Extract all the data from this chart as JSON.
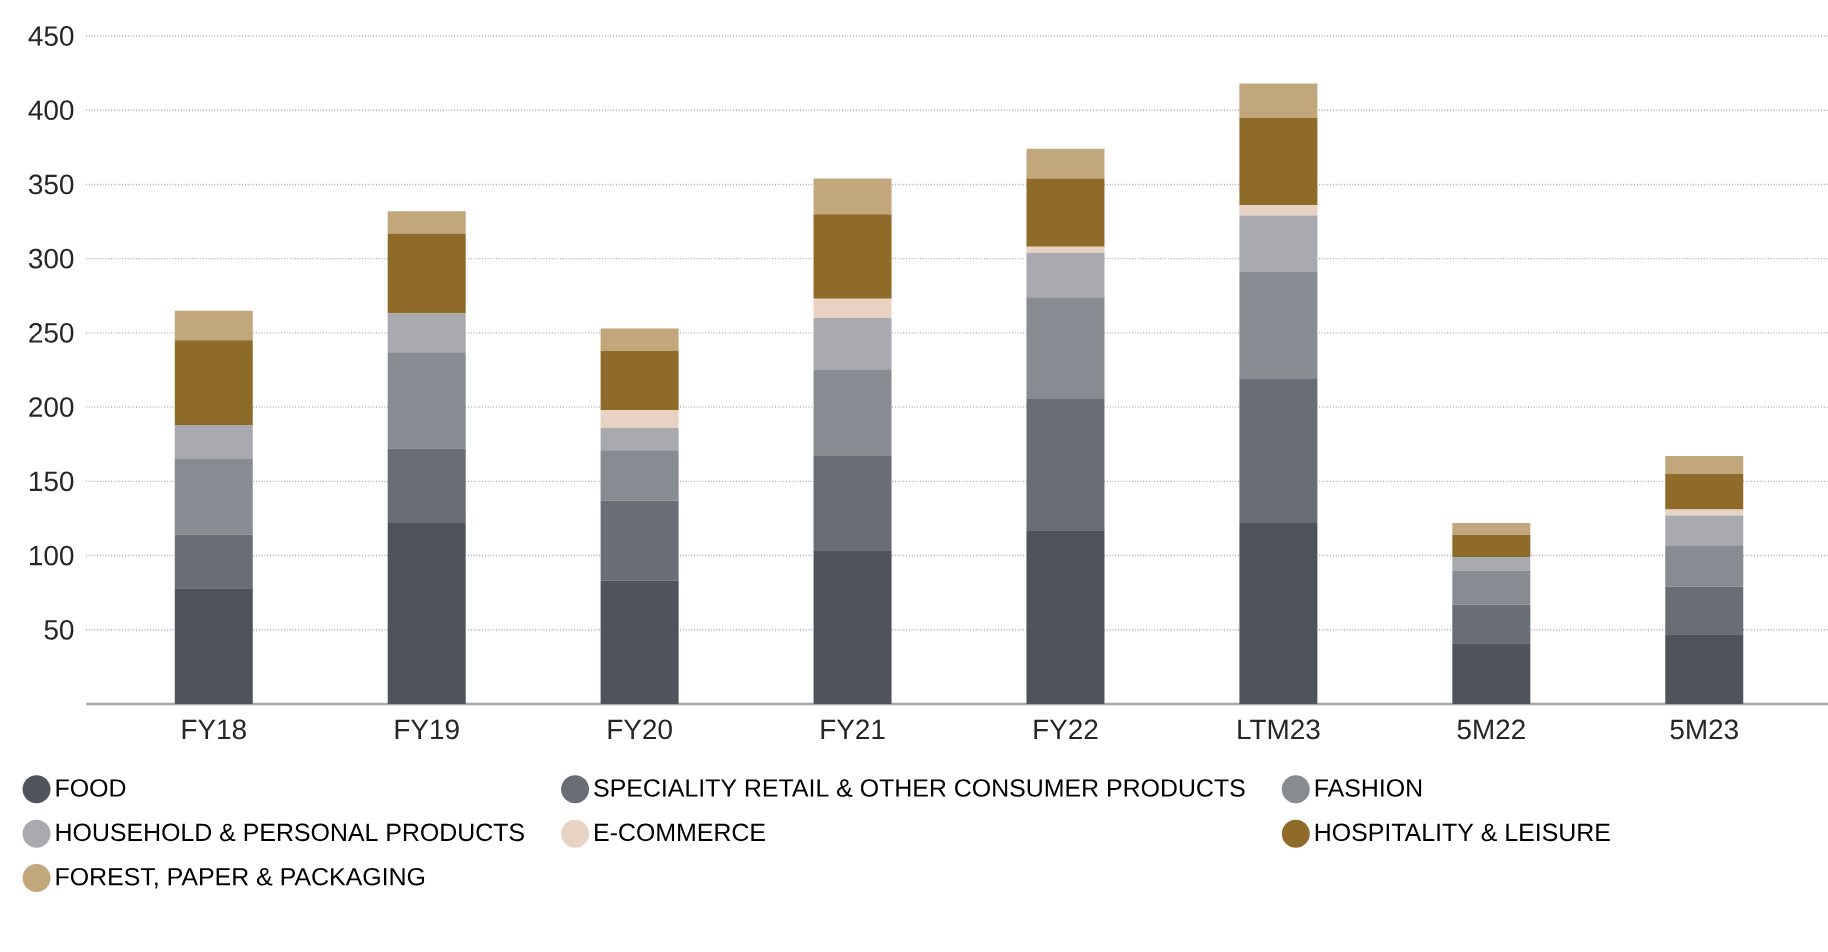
{
  "chart_data": {
    "type": "bar",
    "stacked": true,
    "categories": [
      "FY18",
      "FY19",
      "FY20",
      "FY21",
      "FY22",
      "LTM23",
      "5M22",
      "5M23"
    ],
    "series": [
      {
        "name": "FOOD",
        "color": "#4f535c",
        "values": [
          78,
          122,
          83,
          103,
          117,
          122,
          41,
          47
        ]
      },
      {
        "name": "SPECIALITY RETAIL & OTHER CONSUMER PRODUCTS",
        "color": "#696d75",
        "values": [
          36,
          50,
          54,
          64,
          89,
          97,
          26,
          32
        ]
      },
      {
        "name": "FASHION",
        "color": "#878b92",
        "values": [
          51,
          65,
          34,
          58,
          68,
          72,
          23,
          28
        ]
      },
      {
        "name": "HOUSEHOLD & PERSONAL PRODUCTS",
        "color": "#a8aab0",
        "values": [
          23,
          26,
          15,
          35,
          30,
          38,
          9,
          20
        ]
      },
      {
        "name": "E-COMMERCE",
        "color": "#e8d2c2",
        "values": [
          0,
          0,
          12,
          13,
          4,
          7,
          0,
          4
        ]
      },
      {
        "name": "HOSPITALITY & LEISURE",
        "color": "#8f6b29",
        "values": [
          57,
          54,
          40,
          57,
          46,
          59,
          15,
          24
        ]
      },
      {
        "name": "FOREST, PAPER & PACKAGING",
        "color": "#c2a67c",
        "values": [
          20,
          15,
          15,
          24,
          20,
          23,
          8,
          12
        ]
      }
    ],
    "ylim": [
      0,
      450
    ],
    "yticks": [
      50,
      100,
      150,
      200,
      250,
      300,
      350,
      400,
      450
    ],
    "grid": "y",
    "legend": "bottom"
  }
}
